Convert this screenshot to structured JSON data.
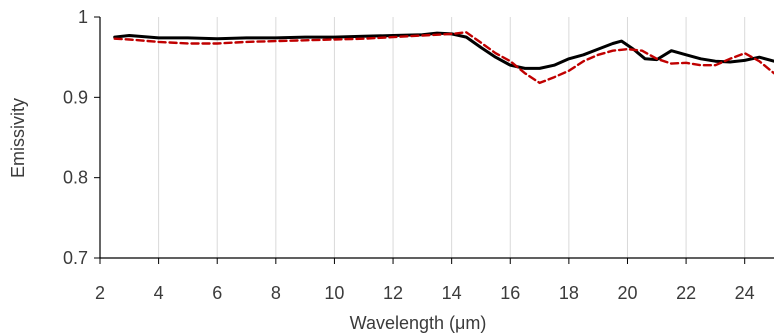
{
  "chart_data": {
    "type": "line",
    "title": "",
    "xlabel": "Wavelength (μm)",
    "ylabel": "Emissivity",
    "xlim": [
      2,
      25
    ],
    "ylim": [
      0.7,
      1.0
    ],
    "x_ticks": [
      2,
      4,
      6,
      8,
      10,
      12,
      14,
      16,
      18,
      20,
      22,
      24
    ],
    "y_ticks": [
      0.7,
      0.8,
      0.9,
      1.0
    ],
    "y_tick_labels": [
      "0.7",
      "0.8",
      "0.9",
      "1"
    ],
    "grid": "vertical",
    "legend": "none",
    "series": [
      {
        "color": "#000000",
        "style": "solid",
        "x": [
          2.5,
          3,
          4,
          5,
          6,
          7,
          8,
          9,
          10,
          11,
          12,
          13,
          13.5,
          14,
          14.5,
          15,
          15.5,
          16,
          16.5,
          17,
          17.5,
          18,
          18.5,
          19,
          19.5,
          19.8,
          20.2,
          20.6,
          21,
          21.5,
          22,
          22.5,
          23,
          23.5,
          24,
          24.5,
          25
        ],
        "y": [
          0.975,
          0.977,
          0.974,
          0.974,
          0.973,
          0.974,
          0.974,
          0.975,
          0.975,
          0.976,
          0.977,
          0.978,
          0.98,
          0.979,
          0.975,
          0.962,
          0.95,
          0.94,
          0.936,
          0.936,
          0.94,
          0.948,
          0.953,
          0.96,
          0.967,
          0.97,
          0.96,
          0.948,
          0.947,
          0.958,
          0.953,
          0.948,
          0.945,
          0.944,
          0.946,
          0.95,
          0.945
        ]
      },
      {
        "color": "#c00000",
        "style": "dashed",
        "x": [
          2.5,
          3,
          4,
          5,
          6,
          7,
          8,
          9,
          10,
          11,
          12,
          13,
          14,
          14.5,
          15,
          15.5,
          16,
          16.5,
          17,
          17.5,
          18,
          18.5,
          19,
          19.5,
          20,
          20.5,
          21,
          21.5,
          22,
          22.5,
          23,
          23.5,
          24,
          24.5,
          25
        ],
        "y": [
          0.973,
          0.972,
          0.969,
          0.967,
          0.967,
          0.969,
          0.97,
          0.971,
          0.972,
          0.973,
          0.975,
          0.977,
          0.979,
          0.981,
          0.968,
          0.955,
          0.945,
          0.93,
          0.918,
          0.925,
          0.933,
          0.945,
          0.953,
          0.958,
          0.96,
          0.958,
          0.948,
          0.942,
          0.943,
          0.94,
          0.94,
          0.948,
          0.955,
          0.945,
          0.93
        ]
      }
    ]
  }
}
